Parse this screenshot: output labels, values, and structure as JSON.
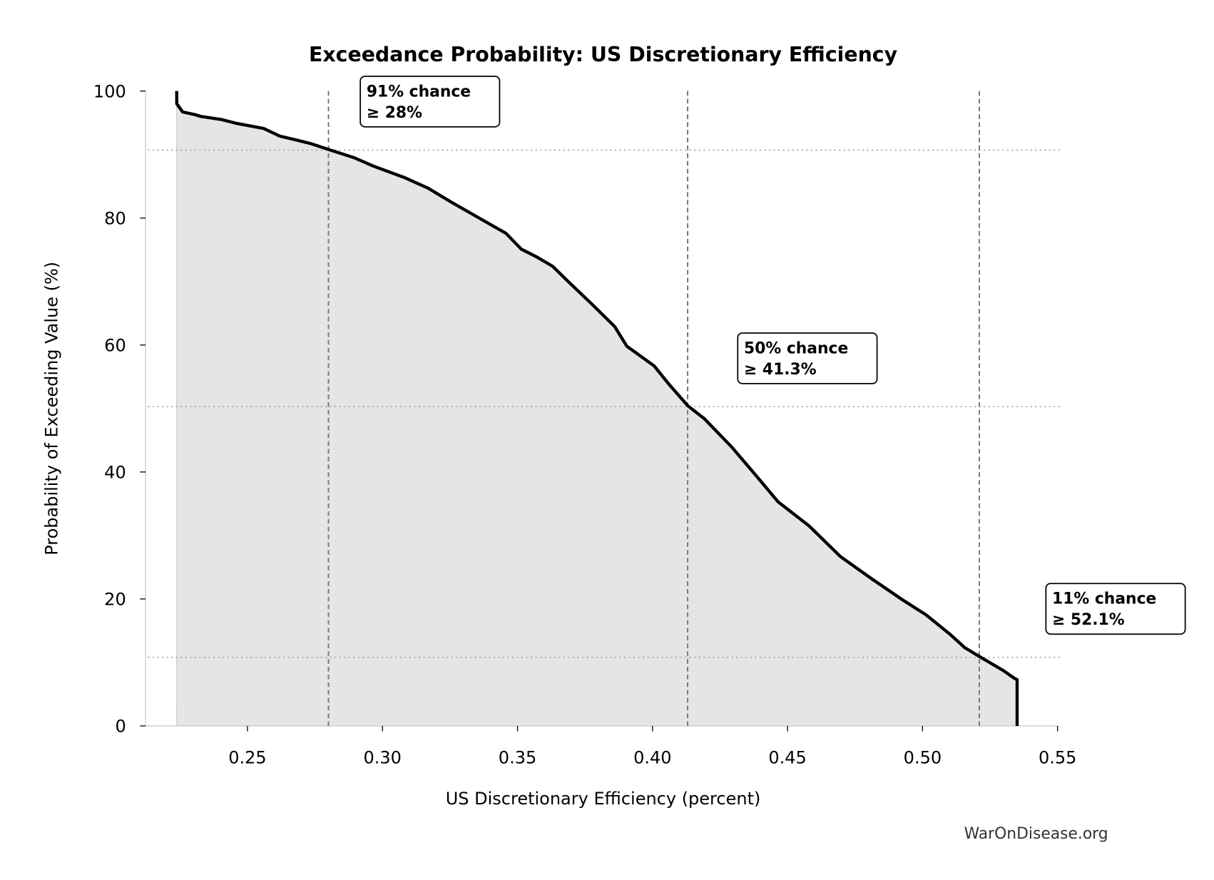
{
  "chart_data": {
    "type": "area",
    "title": "Exceedance Probability: US Discretionary Efficiency",
    "xlabel": "US Discretionary Efficiency (percent)",
    "ylabel": "Probability of Exceeding Value (%)",
    "xlim": [
      0.212,
      0.551
    ],
    "ylim": [
      0,
      100
    ],
    "x_ticks": [
      0.25,
      0.3,
      0.35,
      0.4,
      0.45,
      0.5,
      0.55
    ],
    "x_tick_labels": [
      "0.25",
      "0.30",
      "0.35",
      "0.40",
      "0.45",
      "0.50",
      "0.55"
    ],
    "y_ticks": [
      0,
      20,
      40,
      60,
      80,
      100
    ],
    "y_tick_labels": [
      "0",
      "20",
      "40",
      "60",
      "80",
      "100"
    ],
    "grid": false,
    "line_color": "#000000",
    "fill_color": "#e5e5e5",
    "series": [
      {
        "x": [
          0.2238,
          0.2238,
          0.226,
          0.2304,
          0.2327,
          0.2405,
          0.246,
          0.256,
          0.262,
          0.268,
          0.2736,
          0.28,
          0.2895,
          0.2965,
          0.308,
          0.3169,
          0.3255,
          0.337,
          0.3457,
          0.3514,
          0.357,
          0.363,
          0.3688,
          0.3774,
          0.386,
          0.3905,
          0.4006,
          0.4063,
          0.4131,
          0.4192,
          0.4294,
          0.438,
          0.4465,
          0.458,
          0.4695,
          0.4811,
          0.4928,
          0.5013,
          0.51,
          0.5157,
          0.5216,
          0.53,
          0.534,
          0.535,
          0.535
        ],
        "y": [
          100,
          98,
          96.7,
          96.3,
          96.0,
          95.5,
          94.9,
          94.1,
          92.9,
          92.3,
          91.7,
          90.8,
          89.5,
          88.2,
          86.4,
          84.7,
          82.5,
          79.7,
          77.6,
          75.1,
          73.9,
          72.4,
          70.0,
          66.5,
          62.9,
          59.8,
          56.7,
          53.7,
          50.4,
          48.4,
          43.9,
          39.6,
          35.3,
          31.5,
          26.7,
          23.2,
          19.8,
          17.5,
          14.5,
          12.3,
          10.8,
          8.7,
          7.5,
          7.3,
          0
        ]
      }
    ],
    "reference_lines": [
      {
        "x": 0.28,
        "y": 90.7
      },
      {
        "x": 0.413,
        "y": 50.3
      },
      {
        "x": 0.521,
        "y": 10.8
      }
    ],
    "annotations": [
      {
        "line1": "91% chance",
        "line2": "≥ 28%"
      },
      {
        "line1": "50% chance",
        "line2": "≥ 41.3%"
      },
      {
        "line1": "11% chance",
        "line2": "≥ 52.1%"
      }
    ],
    "watermark": "WarOnDisease.org"
  }
}
